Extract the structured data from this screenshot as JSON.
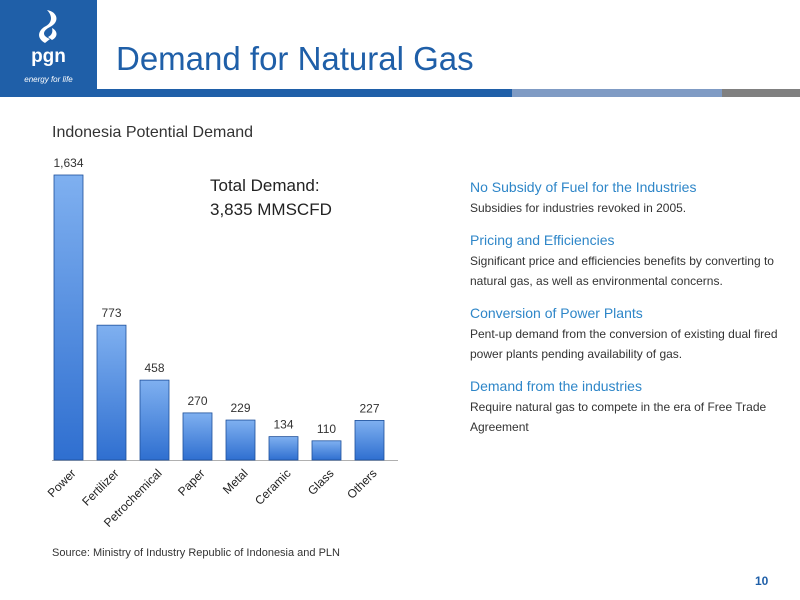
{
  "header": {
    "title": "Demand for Natural Gas",
    "logo_text": "pgn",
    "logo_tagline": "energy for life"
  },
  "colors": {
    "brand_blue": "#1f5fa8",
    "band_light_blue": "#7f9bc4",
    "band_gray": "#808080",
    "accent_blue": "#2e86c8",
    "bar_fill_top": "#7fb0f0",
    "bar_fill_bottom": "#2f6fd0"
  },
  "chart_title": "Indonesia Potential Demand",
  "total_demand": {
    "line1": "Total Demand:",
    "line2": "3,835 MMSCFD"
  },
  "chart_data": {
    "type": "bar",
    "title": "Indonesia Potential Demand",
    "xlabel": "",
    "ylabel": "",
    "categories": [
      "Power",
      "Fertilizer",
      "Petrochemical",
      "Paper",
      "Metal",
      "Ceramic",
      "Glass",
      "Others"
    ],
    "values": [
      1634,
      773,
      458,
      270,
      229,
      134,
      110,
      227
    ],
    "value_labels": [
      "1,634",
      "773",
      "458",
      "270",
      "229",
      "134",
      "110",
      "227"
    ],
    "ylim": [
      0,
      1634
    ],
    "grid": false,
    "legend": "none"
  },
  "right_panel": {
    "sections": [
      {
        "heading": "No Subsidy of Fuel for the Industries",
        "body": "Subsidies for industries revoked in 2005."
      },
      {
        "heading": "Pricing and Efficiencies",
        "body": "Significant price and efficiencies benefits by converting to natural gas, as well as environmental concerns."
      },
      {
        "heading": "Conversion of Power Plants",
        "body": "Pent-up demand from the conversion of existing dual fired power plants pending availability of gas."
      },
      {
        "heading": "Demand from the industries",
        "body": "Require natural gas to compete in the era of Free Trade Agreement"
      }
    ]
  },
  "footer": {
    "source": "Source: Ministry of Industry Republic of Indonesia and PLN",
    "page_number": "10"
  }
}
